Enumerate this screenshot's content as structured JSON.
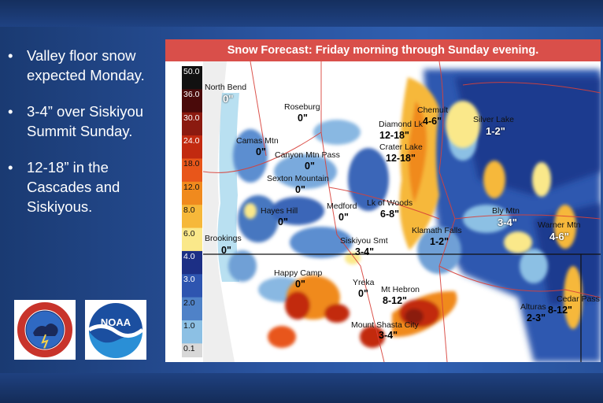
{
  "bullets": [
    {
      "text": "Valley floor snow expected Monday."
    },
    {
      "text": "3-4” over Siskiyou Summit Sunday."
    },
    {
      "text": "12-18” in the Cascades and Siskiyous."
    }
  ],
  "bullet_symbol": "•",
  "panel": {
    "title": "Snow Forecast: Friday morning through Sunday evening."
  },
  "colorbar": {
    "levels": [
      "50.0",
      "36.0",
      "30.0",
      "24.0",
      "18.0",
      "12.0",
      "8.0",
      "6.0",
      "4.0",
      "3.0",
      "2.0",
      "1.0",
      "0.1"
    ],
    "colors": [
      "#111111",
      "#4a0a0a",
      "#8b1a10",
      "#c22a10",
      "#e8561a",
      "#f08a1e",
      "#f6b83a",
      "#fae88a",
      "#1c2f85",
      "#2e55b0",
      "#4f82c8",
      "#8cc0e4",
      "#d8d8d8"
    ]
  },
  "places": [
    {
      "name": "North Bend",
      "value": "0\""
    },
    {
      "name": "Roseburg",
      "value": "0\""
    },
    {
      "name": "Camas Mtn",
      "value": "0\""
    },
    {
      "name": "Canyon Mtn Pass",
      "value": "0\""
    },
    {
      "name": "Sexton Mountain",
      "value": "0\""
    },
    {
      "name": "Hayes Hill",
      "value": "0\""
    },
    {
      "name": "Brookings",
      "value": "0\""
    },
    {
      "name": "Medford",
      "value": "0\""
    },
    {
      "name": "Diamond Lk",
      "value": "12-18\""
    },
    {
      "name": "Crater Lake",
      "value": "12-18\""
    },
    {
      "name": "Chemult",
      "value": "4-6\""
    },
    {
      "name": "Silver Lake",
      "value": "1-2\""
    },
    {
      "name": "Lk of Woods",
      "value": "6-8\""
    },
    {
      "name": "Klamath Falls",
      "value": "1-2\""
    },
    {
      "name": "Bly Mtn",
      "value": "3-4\""
    },
    {
      "name": "Warner Mtn",
      "value": "4-6\""
    },
    {
      "name": "Siskiyou Smt",
      "value": "3-4\""
    },
    {
      "name": "Happy Camp",
      "value": "0\""
    },
    {
      "name": "Yreka",
      "value": "0\""
    },
    {
      "name": "Mt Hebron",
      "value": "8-12\""
    },
    {
      "name": "Mount Shasta City",
      "value": "3-4\""
    },
    {
      "name": "Alturas",
      "value": "2-3\""
    },
    {
      "name": "Cedar Pass",
      "value": "8-12\""
    }
  ],
  "logos": {
    "nws_text": "NATIONAL WEATHER SERVICE",
    "noaa_text": "NOAA"
  }
}
